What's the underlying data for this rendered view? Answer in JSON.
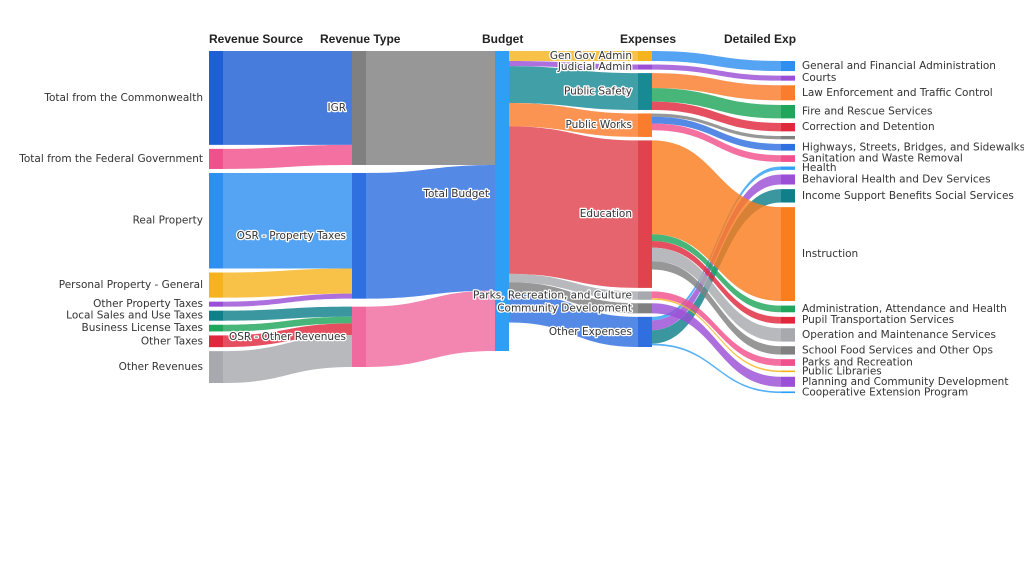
{
  "columns": [
    "Revenue Source",
    "Revenue Type",
    "Budget",
    "Expenses",
    "Detailed Exp"
  ],
  "sources": [
    {
      "label": "Total from the Commonwealth",
      "value": 56,
      "color": "#1f5fd6"
    },
    {
      "label": "Total from the Federal Government",
      "value": 12,
      "color": "#f0508c"
    },
    {
      "label": "Real Property",
      "value": 57,
      "color": "#2f8ff0"
    },
    {
      "label": "Personal Property - General",
      "value": 15,
      "color": "#f5b41e"
    },
    {
      "label": "Other Property Taxes",
      "value": 3,
      "color": "#9b4fd6"
    },
    {
      "label": "Local Sales and Use Taxes",
      "value": 6,
      "color": "#0f7f8a"
    },
    {
      "label": "Business License Taxes",
      "value": 4,
      "color": "#1fa65a"
    },
    {
      "label": "Other Taxes",
      "value": 7,
      "color": "#e0283c"
    },
    {
      "label": "Other Revenues",
      "value": 19,
      "color": "#a7a9ae"
    }
  ],
  "types": [
    {
      "label": "IGR",
      "value": 68,
      "color": "#808080"
    },
    {
      "label": "OSR - Property Taxes",
      "value": 75,
      "color": "#2f6fe0"
    },
    {
      "label": "OSR - Other Revenues",
      "value": 36,
      "color": "#f06aa0"
    }
  ],
  "budget": {
    "label": "Total Budget",
    "value": 179,
    "color": "#2f9ff5"
  },
  "expenses": [
    {
      "label": "Gen Gov Admin",
      "value": 6,
      "color": "#f5b41e"
    },
    {
      "label": "Judicial Admin",
      "value": 3,
      "color": "#9b4fd6"
    },
    {
      "label": "Public Safety",
      "value": 22,
      "color": "#178a94"
    },
    {
      "label": "Public Works",
      "value": 14,
      "color": "#fa7d2d"
    },
    {
      "label": "Education",
      "value": 88,
      "color": "#e0424e"
    },
    {
      "label": "Parks, Recreation, and Culture",
      "value": 5,
      "color": "#a7a9ae"
    },
    {
      "label": "Community Development",
      "value": 6,
      "color": "#808080"
    },
    {
      "label": "Other Expenses",
      "value": 18,
      "color": "#2f6fe0"
    }
  ],
  "details": [
    {
      "label": "General and Financial Administration",
      "value": 6,
      "color": "#2f8ff0"
    },
    {
      "label": "Courts",
      "value": 3,
      "color": "#9b4fd6"
    },
    {
      "label": "Law Enforcement and Traffic Control",
      "value": 9,
      "color": "#fa7d2d"
    },
    {
      "label": "Fire and Rescue Services",
      "value": 8,
      "color": "#1fa65a"
    },
    {
      "label": "Correction and Detention",
      "value": 5,
      "color": "#e0283c"
    },
    {
      "label": "",
      "value": 2,
      "color": "#808080"
    },
    {
      "label": "Highways, Streets, Bridges, and Sidewalks",
      "value": 4,
      "color": "#2f6fe0"
    },
    {
      "label": "Sanitation and Waste Removal",
      "value": 4,
      "color": "#f0508c"
    },
    {
      "label": "Health",
      "value": 2,
      "color": "#2f9ff5"
    },
    {
      "label": "Behavioral Health and Dev Services",
      "value": 6,
      "color": "#9b4fd6"
    },
    {
      "label": "Income Support Benefits Social Services",
      "value": 8,
      "color": "#0f7f8a"
    },
    {
      "label": "Instruction",
      "value": 56,
      "color": "#fa7d1e"
    },
    {
      "label": "Administration, Attendance and Health",
      "value": 4,
      "color": "#1fa65a"
    },
    {
      "label": "Pupil Transportation Services",
      "value": 4,
      "color": "#e0283c"
    },
    {
      "label": "Operation and Maintenance Services",
      "value": 8,
      "color": "#a7a9ae"
    },
    {
      "label": "School Food Services and Other Ops",
      "value": 5,
      "color": "#808080"
    },
    {
      "label": "Parks and Recreation",
      "value": 4,
      "color": "#f0508c"
    },
    {
      "label": "Public Libraries",
      "value": 1,
      "color": "#f5b41e"
    },
    {
      "label": "Planning and Community Development",
      "value": 6,
      "color": "#9b4fd6"
    },
    {
      "label": "Cooperative Extension Program",
      "value": 1,
      "color": "#2f9ff5"
    }
  ]
}
